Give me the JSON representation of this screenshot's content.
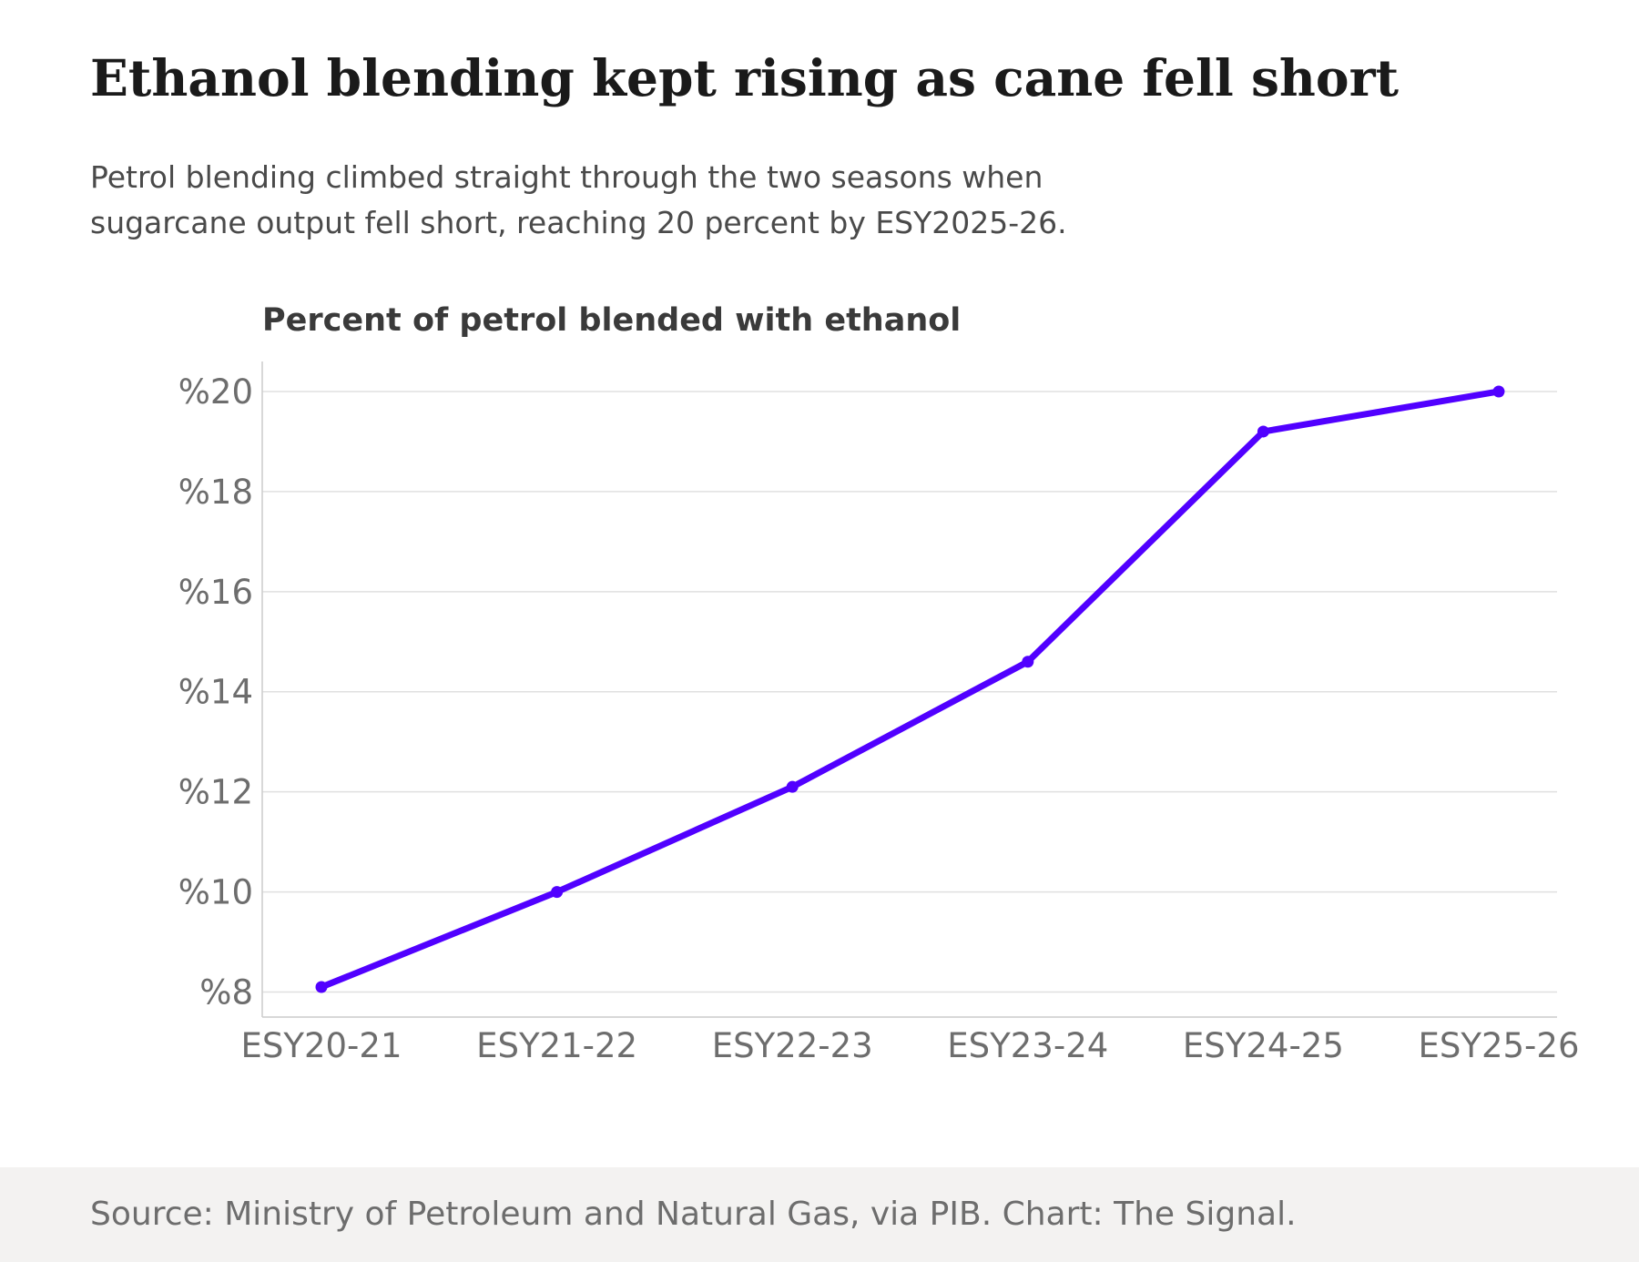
{
  "title": "Ethanol blending kept rising as cane fell short",
  "subtitle_lines": [
    "Petrol blending climbed straight through the two seasons when",
    "sugarcane output fell short, reaching 20 percent by ESY2025-26."
  ],
  "footer": {
    "source": "Source: Ministry of Petroleum and Natural Gas, via PIB. Chart: The Signal."
  },
  "chart_data": {
    "type": "line",
    "title": "Percent of petrol blended with ethanol",
    "xlabel": "",
    "ylabel": "",
    "categories": [
      "ESY20-21",
      "ESY21-22",
      "ESY22-23",
      "ESY23-24",
      "ESY24-25",
      "ESY25-26"
    ],
    "series": [
      {
        "values": [
          8.1,
          10.0,
          12.1,
          14.6,
          19.2,
          20.0
        ],
        "color": "#5100ff"
      }
    ],
    "ylim": [
      7.5,
      20.6
    ],
    "yticks": [
      8,
      10,
      12,
      14,
      16,
      18,
      20
    ],
    "ytick_labels": [
      "%8",
      "%10",
      "%12",
      "%14",
      "%16",
      "%18",
      "%20"
    ],
    "grid": true,
    "markers": true,
    "legend": "none",
    "colors": {
      "line": "#5100ff",
      "grid": "#e0e0e0",
      "axis": "#cccccc",
      "tick_text": "#6d6d6d"
    }
  }
}
